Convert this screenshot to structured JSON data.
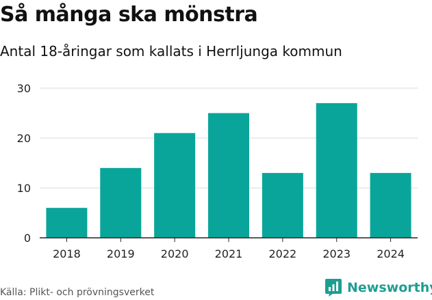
{
  "header": {
    "title": "Så många ska mönstra",
    "subtitle": "Antal 18-åringar som kallats i Herrljunga kommun"
  },
  "footer": {
    "source": "Källa: Plikt- och prövningsverket",
    "brand": "Newsworthy",
    "brand_icon": "newsworthy-logo-icon"
  },
  "colors": {
    "bar": "#0aa59a",
    "grid": "#d9d9d9",
    "axis": "#222222",
    "brand": "#1e9e92"
  },
  "chart_data": {
    "type": "bar",
    "title": "Så många ska mönstra",
    "subtitle": "Antal 18-åringar som kallats i Herrljunga kommun",
    "xlabel": "",
    "ylabel": "",
    "categories": [
      "2018",
      "2019",
      "2020",
      "2021",
      "2022",
      "2023",
      "2024"
    ],
    "values": [
      6,
      14,
      21,
      25,
      13,
      27,
      13
    ],
    "ylim": [
      0,
      30
    ],
    "yticks": [
      0,
      10,
      20,
      30
    ],
    "grid": true,
    "legend": "none"
  }
}
